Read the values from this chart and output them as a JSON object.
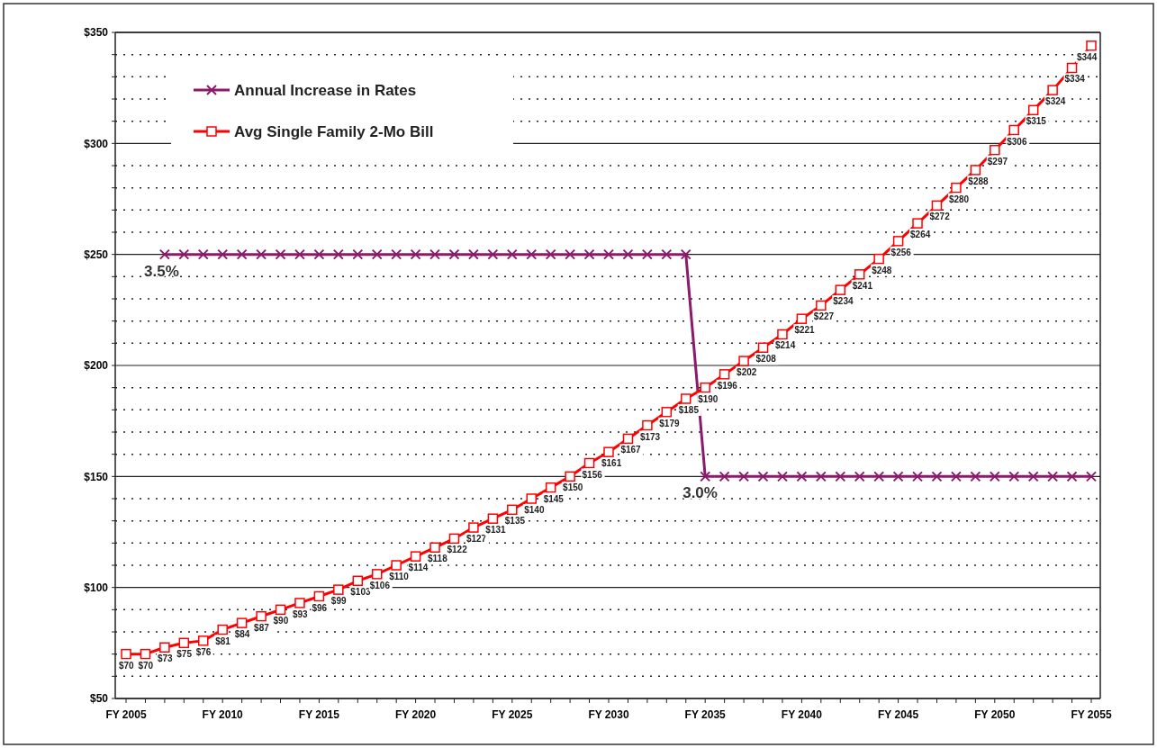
{
  "chart_data": {
    "type": "line",
    "categories": [
      "FY 2005",
      null,
      null,
      null,
      null,
      "FY 2010",
      null,
      null,
      null,
      null,
      "FY 2015",
      null,
      null,
      null,
      null,
      "FY 2020",
      null,
      null,
      null,
      null,
      "FY 2025",
      null,
      null,
      null,
      null,
      "FY 2030",
      null,
      null,
      null,
      null,
      "FY 2035",
      null,
      null,
      null,
      null,
      "FY 2040",
      null,
      null,
      null,
      null,
      "FY 2045",
      null,
      null,
      null,
      null,
      "FY 2050",
      null,
      null,
      null,
      null,
      "FY 2055"
    ],
    "series": [
      {
        "name": "Annual Increase in Rates",
        "color": "#8b1a6b",
        "marker": "cross",
        "values": [
          null,
          null,
          250,
          250,
          250,
          250,
          250,
          250,
          250,
          250,
          250,
          250,
          250,
          250,
          250,
          250,
          250,
          250,
          250,
          250,
          250,
          250,
          250,
          250,
          250,
          250,
          250,
          250,
          250,
          250,
          150,
          150,
          150,
          150,
          150,
          150,
          150,
          150,
          150,
          150,
          150,
          150,
          150,
          150,
          150,
          150,
          150,
          150,
          150,
          150,
          150
        ]
      },
      {
        "name": "Avg Single Family 2-Mo Bill",
        "color": "#ff0000",
        "marker": "square",
        "values": [
          70,
          70,
          73,
          75,
          76,
          81,
          84,
          87,
          90,
          93,
          96,
          99,
          103,
          106,
          110,
          114,
          118,
          122,
          127,
          131,
          135,
          140,
          145,
          150,
          156,
          161,
          167,
          173,
          179,
          185,
          190,
          196,
          202,
          208,
          214,
          221,
          227,
          234,
          241,
          248,
          256,
          264,
          272,
          280,
          288,
          297,
          306,
          315,
          324,
          334,
          344
        ],
        "value_labels": [
          "$70",
          "$70",
          "$73",
          "$75",
          "$76",
          "$81",
          "$84",
          "$87",
          "$90",
          "$93",
          "$96",
          "$99",
          "$103",
          "$106",
          "$110",
          "$114",
          "$118",
          "$122",
          "$127",
          "$131",
          "$135",
          "$140",
          "$145",
          "$150",
          "$156",
          "$161",
          "$167",
          "$173",
          "$179",
          "$185",
          "$190",
          "$196",
          "$202",
          "$208",
          "$214",
          "$221",
          "$227",
          "$234",
          "$241",
          "$248",
          "$256",
          "$264",
          "$272",
          "$280",
          "$288",
          "$297",
          "$306",
          "$315",
          "$324",
          "$334",
          "$344"
        ]
      }
    ],
    "ylim": [
      50,
      350
    ],
    "yticks": [
      {
        "value": 50,
        "label": "$50"
      },
      {
        "value": 60,
        "label": null
      },
      {
        "value": 70,
        "label": null
      },
      {
        "value": 80,
        "label": null
      },
      {
        "value": 90,
        "label": null
      },
      {
        "value": 100,
        "label": "$100"
      },
      {
        "value": 110,
        "label": null
      },
      {
        "value": 120,
        "label": null
      },
      {
        "value": 130,
        "label": null
      },
      {
        "value": 140,
        "label": null
      },
      {
        "value": 150,
        "label": "$150"
      },
      {
        "value": 160,
        "label": null
      },
      {
        "value": 170,
        "label": null
      },
      {
        "value": 180,
        "label": null
      },
      {
        "value": 190,
        "label": null
      },
      {
        "value": 200,
        "label": "$200"
      },
      {
        "value": 210,
        "label": null
      },
      {
        "value": 220,
        "label": null
      },
      {
        "value": 230,
        "label": null
      },
      {
        "value": 240,
        "label": null
      },
      {
        "value": 250,
        "label": "$250"
      },
      {
        "value": 260,
        "label": null
      },
      {
        "value": 270,
        "label": null
      },
      {
        "value": 280,
        "label": null
      },
      {
        "value": 290,
        "label": null
      },
      {
        "value": 300,
        "label": "$300"
      },
      {
        "value": 310,
        "label": null
      },
      {
        "value": 320,
        "label": null
      },
      {
        "value": 330,
        "label": null
      },
      {
        "value": 340,
        "label": null
      },
      {
        "value": 350,
        "label": "$350"
      }
    ],
    "grid": "y",
    "legend": "top left",
    "annotations": [
      "3.5%",
      "3.0%"
    ]
  }
}
